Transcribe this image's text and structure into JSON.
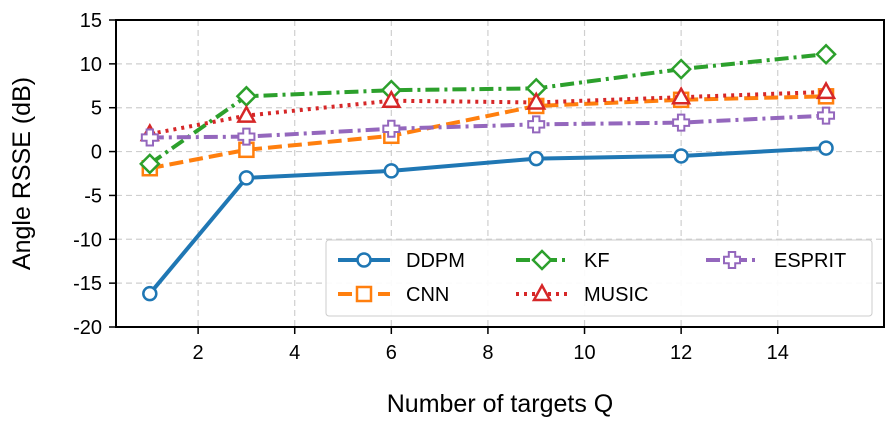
{
  "chart_data": {
    "type": "line",
    "title": "",
    "xlabel": "Number of targets Q",
    "ylabel": "Angle RSSE (dB)",
    "xlim": [
      0.3,
      16.2
    ],
    "ylim": [
      -20,
      15
    ],
    "xticks": [
      2,
      4,
      6,
      8,
      10,
      12,
      14
    ],
    "yticks": [
      15,
      10,
      5,
      0,
      -5,
      -10,
      -15,
      -20
    ],
    "grid": true,
    "legend_position": "lower-right",
    "x": [
      1,
      3,
      6,
      9,
      12,
      15
    ],
    "series": [
      {
        "name": "DDPM",
        "color": "#1f77b4",
        "linestyle": "solid",
        "marker": "circle",
        "values": [
          -16.2,
          -3.0,
          -2.2,
          -0.8,
          -0.5,
          0.4
        ]
      },
      {
        "name": "CNN",
        "color": "#ff7f0e",
        "linestyle": "dashed",
        "marker": "square",
        "values": [
          -1.9,
          0.2,
          1.8,
          5.2,
          5.9,
          6.3
        ]
      },
      {
        "name": "KF",
        "color": "#2ca02c",
        "linestyle": "dashdot",
        "marker": "diamond",
        "values": [
          -1.4,
          6.3,
          7.0,
          7.2,
          9.4,
          11.1
        ]
      },
      {
        "name": "MUSIC",
        "color": "#d62728",
        "linestyle": "dotted",
        "marker": "triangle",
        "values": [
          2.0,
          4.1,
          5.8,
          5.6,
          6.2,
          6.8
        ]
      },
      {
        "name": "ESPRIT",
        "color": "#9467bd",
        "linestyle": "dashdot",
        "marker": "plus",
        "values": [
          1.6,
          1.7,
          2.6,
          3.1,
          3.3,
          4.1
        ]
      }
    ]
  }
}
